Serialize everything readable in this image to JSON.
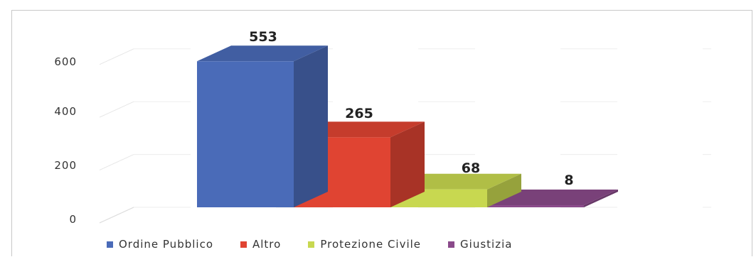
{
  "chart_data": {
    "type": "bar",
    "categories": [
      "Ordine Pubblico",
      "Altro",
      "Protezione Civile",
      "Giustizia"
    ],
    "values": [
      553,
      265,
      68,
      8
    ],
    "data_labels": [
      "553",
      "265",
      "68",
      "8"
    ],
    "colors": [
      "#4a6bb8",
      "#e04432",
      "#c8d850",
      "#8a4a8a"
    ],
    "y_ticks": [
      "0",
      "200",
      "400",
      "600"
    ],
    "ylim": [
      0,
      600
    ],
    "grid": true,
    "legend_position": "bottom",
    "style": "3d-stepped"
  },
  "legend": {
    "items": [
      {
        "label": "Ordine Pubblico",
        "color": "#4a6bb8"
      },
      {
        "label": "Altro",
        "color": "#e04432"
      },
      {
        "label": "Protezione Civile",
        "color": "#c8d850"
      },
      {
        "label": "Giustizia",
        "color": "#8a4a8a"
      }
    ]
  }
}
